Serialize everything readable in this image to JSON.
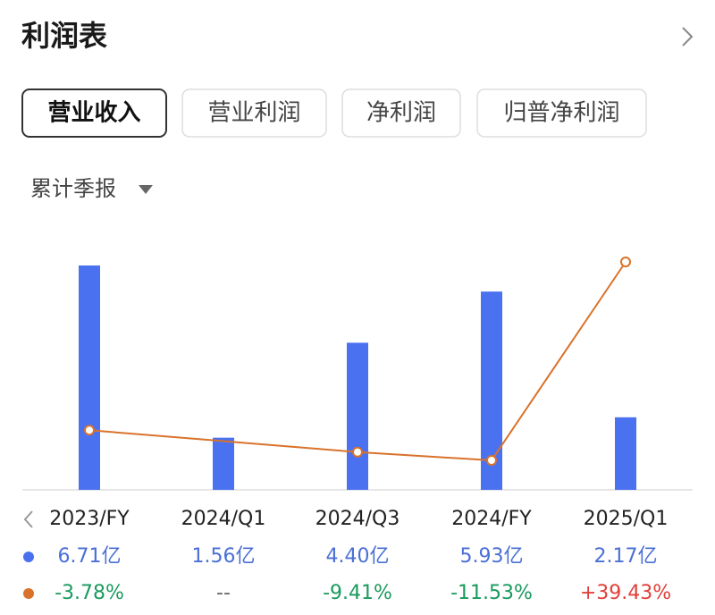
{
  "header": {
    "title": "利润表"
  },
  "tabs": [
    "营业收入",
    "营业利润",
    "净利润",
    "归普净利润"
  ],
  "period_selector": "累计季报",
  "chart_data": {
    "type": "bar-line",
    "categories": [
      "2023/FY",
      "2024/Q1",
      "2024/Q3",
      "2024/FY",
      "2025/Q1"
    ],
    "series": [
      {
        "type": "bar",
        "color": "#4a72f0",
        "label_color": "#4a6fd6",
        "values": [
          6.71,
          1.56,
          4.4,
          5.93,
          2.17
        ],
        "value_labels": [
          "6.71亿",
          "1.56亿",
          "4.40亿",
          "5.93亿",
          "2.17亿"
        ]
      },
      {
        "type": "line",
        "color": "#d9722b",
        "positive_color": "#e0403a",
        "negative_color": "#1a9a5e",
        "none_color": "#666666",
        "values": [
          -3.78,
          null,
          -9.41,
          -11.53,
          39.43
        ],
        "value_labels": [
          "-3.78%",
          "--",
          "-9.41%",
          "-11.53%",
          "+39.43%"
        ]
      }
    ]
  }
}
